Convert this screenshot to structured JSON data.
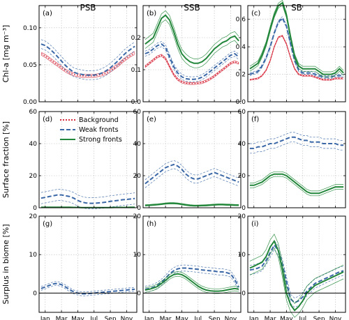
{
  "chart_data": {
    "type": "line",
    "columns": [
      "PSB",
      "SSB",
      "SB"
    ],
    "months": [
      "Jan",
      "Mar",
      "May",
      "Jul",
      "Sep",
      "Nov"
    ],
    "row_labels": [
      "Chl-a [mg m⁻³]",
      "Surface fraction [%]",
      "Surplus in biome [%]"
    ],
    "grid": true,
    "legend": {
      "panel": "d",
      "placement": "upper-center",
      "entries": [
        {
          "key": "background",
          "label": "Background",
          "color": "#d62a3c",
          "style": "dotted"
        },
        {
          "key": "weak",
          "label": "Weak fronts",
          "color": "#3a67a6",
          "style": "dashed"
        },
        {
          "key": "strong",
          "label": "Strong fronts",
          "color": "#22873a",
          "style": "solid"
        }
      ]
    },
    "panels": [
      {
        "id": "a",
        "label": "(a)",
        "ylim": [
          0,
          0.13
        ],
        "yticks": [
          "0.00",
          "0.05",
          "0.10"
        ],
        "ytick_values": [
          0,
          0.05,
          0.1
        ],
        "zero_line": false,
        "series": [
          {
            "key": "background",
            "values": [
              0.065,
              0.062,
              0.058,
              0.054,
              0.05,
              0.046,
              0.042,
              0.039,
              0.037,
              0.036,
              0.035,
              0.035,
              0.035,
              0.035,
              0.036,
              0.037,
              0.039,
              0.042,
              0.046,
              0.05,
              0.055,
              0.059,
              0.063,
              0.066
            ],
            "band": 0.002
          },
          {
            "key": "weak",
            "values": [
              0.078,
              0.076,
              0.072,
              0.067,
              0.061,
              0.055,
              0.049,
              0.044,
              0.04,
              0.038,
              0.037,
              0.036,
              0.036,
              0.036,
              0.037,
              0.039,
              0.042,
              0.046,
              0.051,
              0.056,
              0.062,
              0.067,
              0.071,
              0.075
            ],
            "band": 0.006
          }
        ]
      },
      {
        "id": "b",
        "label": "(b)",
        "ylim": [
          0,
          0.3
        ],
        "yticks": [
          "0.0",
          "0.1",
          "0.2"
        ],
        "ytick_values": [
          0,
          0.1,
          0.2
        ],
        "zero_line": false,
        "series": [
          {
            "key": "background",
            "values": [
              0.11,
              0.12,
              0.13,
              0.14,
              0.145,
              0.135,
              0.11,
              0.085,
              0.07,
              0.062,
              0.058,
              0.057,
              0.057,
              0.058,
              0.06,
              0.065,
              0.072,
              0.08,
              0.09,
              0.1,
              0.11,
              0.12,
              0.125,
              0.12
            ],
            "band": 0.003
          },
          {
            "key": "weak",
            "values": [
              0.15,
              0.155,
              0.165,
              0.175,
              0.18,
              0.17,
              0.14,
              0.11,
              0.09,
              0.078,
              0.072,
              0.07,
              0.07,
              0.072,
              0.077,
              0.085,
              0.095,
              0.105,
              0.115,
              0.125,
              0.135,
              0.145,
              0.15,
              0.14
            ],
            "band": 0.008
          },
          {
            "key": "strong",
            "values": [
              0.18,
              0.19,
              0.2,
              0.23,
              0.26,
              0.27,
              0.255,
              0.22,
              0.18,
              0.15,
              0.135,
              0.125,
              0.12,
              0.12,
              0.125,
              0.135,
              0.15,
              0.165,
              0.175,
              0.185,
              0.19,
              0.2,
              0.205,
              0.19
            ],
            "band": 0.014
          }
        ]
      },
      {
        "id": "c",
        "label": "(c)",
        "ylim": [
          0,
          0.7
        ],
        "yticks": [
          "0.0",
          "0.2",
          "0.4",
          "0.6"
        ],
        "ytick_values": [
          0,
          0.2,
          0.4,
          0.6
        ],
        "zero_line": false,
        "series": [
          {
            "key": "background",
            "values": [
              0.16,
              0.165,
              0.17,
              0.19,
              0.23,
              0.3,
              0.4,
              0.47,
              0.48,
              0.42,
              0.32,
              0.24,
              0.2,
              0.19,
              0.19,
              0.19,
              0.18,
              0.17,
              0.16,
              0.16,
              0.16,
              0.17,
              0.17,
              0.17
            ],
            "band": 0.004
          },
          {
            "key": "weak",
            "values": [
              0.2,
              0.21,
              0.22,
              0.26,
              0.32,
              0.4,
              0.5,
              0.58,
              0.61,
              0.55,
              0.42,
              0.3,
              0.23,
              0.21,
              0.21,
              0.21,
              0.2,
              0.19,
              0.18,
              0.18,
              0.18,
              0.19,
              0.19,
              0.19
            ],
            "band": 0.01
          },
          {
            "key": "strong",
            "values": [
              0.24,
              0.26,
              0.28,
              0.34,
              0.42,
              0.53,
              0.63,
              0.7,
              0.72,
              0.63,
              0.47,
              0.33,
              0.26,
              0.24,
              0.24,
              0.24,
              0.24,
              0.22,
              0.2,
              0.2,
              0.2,
              0.21,
              0.24,
              0.21
            ],
            "band": 0.018
          }
        ]
      },
      {
        "id": "d",
        "label": "(d)",
        "ylim": [
          0,
          60
        ],
        "yticks": [
          "0",
          "20",
          "40",
          "60"
        ],
        "ytick_values": [
          0,
          20,
          40,
          60
        ],
        "zero_line": false,
        "series": [
          {
            "key": "weak",
            "values": [
              6.0,
              6.5,
              7.0,
              7.5,
              8.0,
              8.0,
              7.5,
              7.0,
              6.0,
              4.5,
              3.5,
              3.0,
              2.8,
              2.8,
              3.0,
              3.2,
              3.5,
              4.0,
              4.3,
              4.6,
              5.0,
              5.2,
              5.5,
              5.8
            ],
            "band": 3.5
          },
          {
            "key": "strong",
            "values": [
              0.3,
              0.3,
              0.3,
              0.3,
              0.3,
              0.3,
              0.3,
              0.3,
              0.2,
              0.2,
              0.1,
              0.1,
              0.1,
              0.1,
              0.1,
              0.1,
              0.1,
              0.1,
              0.2,
              0.2,
              0.2,
              0.2,
              0.3,
              0.3
            ],
            "band": 0.1
          }
        ]
      },
      {
        "id": "e",
        "label": "(e)",
        "ylim": [
          0,
          60
        ],
        "yticks": [
          "0",
          "20",
          "40",
          "60"
        ],
        "ytick_values": [
          0,
          20,
          40,
          60
        ],
        "zero_line": false,
        "series": [
          {
            "key": "weak",
            "values": [
              15,
              17,
              19,
              21,
              23,
              25,
              26,
              27,
              26,
              24,
              21,
              19,
              18,
              18,
              19,
              20,
              21,
              22,
              21,
              20,
              19,
              18,
              17,
              16
            ],
            "band": 2.5
          },
          {
            "key": "strong",
            "values": [
              1.5,
              1.6,
              1.8,
              2.0,
              2.3,
              2.6,
              2.8,
              2.8,
              2.6,
              2.2,
              1.8,
              1.5,
              1.3,
              1.3,
              1.4,
              1.5,
              1.7,
              1.9,
              2.0,
              2.0,
              1.9,
              1.8,
              1.7,
              1.6
            ],
            "band": 0.4
          }
        ]
      },
      {
        "id": "f",
        "label": "(f)",
        "ylim": [
          0,
          60
        ],
        "yticks": [
          "0",
          "20",
          "40",
          "60"
        ],
        "ytick_values": [
          0,
          20,
          40,
          60
        ],
        "zero_line": false,
        "series": [
          {
            "key": "weak",
            "values": [
              37,
              37,
              38,
              38,
              39,
              40,
              40,
              41,
              42,
              43,
              44,
              44,
              43,
              42,
              42,
              41,
              41,
              41,
              40,
              40,
              40,
              40,
              39,
              39
            ],
            "band": 3
          },
          {
            "key": "strong",
            "values": [
              14,
              14,
              15,
              16,
              18,
              20,
              21,
              21,
              21,
              20,
              18,
              16,
              14,
              12,
              10,
              9,
              9,
              9,
              10,
              11,
              12,
              13,
              13,
              13
            ],
            "band": 1.5
          }
        ]
      },
      {
        "id": "g",
        "label": "(g)",
        "ylim": [
          -5,
          20
        ],
        "yticks": [
          "0",
          "10",
          "20"
        ],
        "ytick_values": [
          0,
          10,
          20
        ],
        "zero_line": true,
        "series": [
          {
            "key": "weak",
            "values": [
              1.2,
              1.6,
              2.0,
              2.4,
              2.5,
              2.2,
              1.6,
              0.9,
              0.3,
              0.0,
              -0.2,
              -0.2,
              -0.1,
              0.0,
              0.1,
              0.2,
              0.3,
              0.4,
              0.5,
              0.6,
              0.7,
              0.8,
              0.9,
              1.0
            ],
            "band": 0.5
          }
        ]
      },
      {
        "id": "h",
        "label": "(h)",
        "ylim": [
          -5,
          20
        ],
        "yticks": [
          "0",
          "10",
          "20"
        ],
        "ytick_values": [
          0,
          10,
          20
        ],
        "zero_line": true,
        "series": [
          {
            "key": "weak",
            "values": [
              1.0,
              1.2,
              1.5,
              2.0,
              2.8,
              3.8,
              5.0,
              5.8,
              6.3,
              6.5,
              6.5,
              6.4,
              6.3,
              6.2,
              6.0,
              5.9,
              5.8,
              5.7,
              5.5,
              5.5,
              5.3,
              5.0,
              3.5,
              1.5
            ],
            "band": 0.8
          },
          {
            "key": "strong",
            "values": [
              0.8,
              1.0,
              1.3,
              1.7,
              2.5,
              3.3,
              4.2,
              4.8,
              5.0,
              4.8,
              4.2,
              3.4,
              2.6,
              1.8,
              1.2,
              0.8,
              0.6,
              0.5,
              0.5,
              0.6,
              0.8,
              1.0,
              1.2,
              1.0
            ],
            "band": 0.6
          }
        ]
      },
      {
        "id": "i",
        "label": "(i)",
        "ylim": [
          -5,
          20
        ],
        "yticks": [
          "0",
          "10",
          "20"
        ],
        "ytick_values": [
          0,
          10,
          20
        ],
        "zero_line": true,
        "series": [
          {
            "key": "weak",
            "values": [
              6.0,
              6.2,
              6.5,
              7.0,
              8.5,
              10.5,
              12.5,
              11.0,
              7.5,
              3.0,
              -1.5,
              -2.5,
              -2.0,
              -1.0,
              0.5,
              1.5,
              2.5,
              3.0,
              3.5,
              4.0,
              4.5,
              5.0,
              5.5,
              5.8
            ],
            "band": 1.2
          },
          {
            "key": "strong",
            "values": [
              6.5,
              7.0,
              7.5,
              8.0,
              9.5,
              12.0,
              13.5,
              11.0,
              6.0,
              0.0,
              -3.0,
              -4.5,
              -3.5,
              -2.0,
              0.0,
              1.0,
              2.0,
              2.5,
              3.0,
              3.5,
              4.0,
              4.5,
              5.0,
              5.5
            ],
            "band": 1.8
          }
        ]
      }
    ]
  }
}
